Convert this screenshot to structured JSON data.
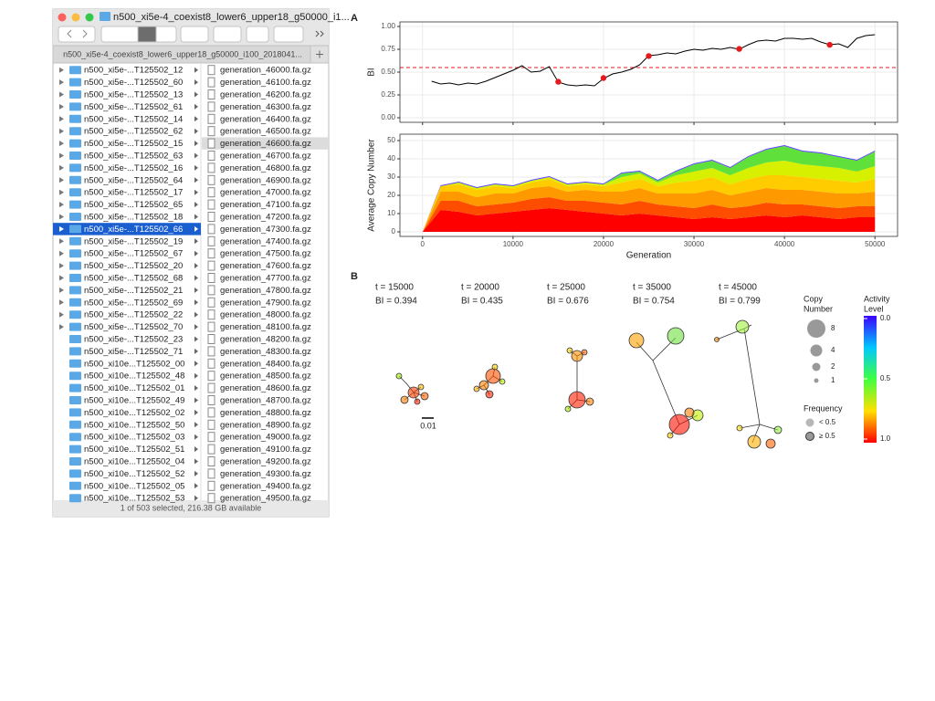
{
  "finder": {
    "title": "n500_xi5e-4_coexist8_lower6_upper18_g50000_i1...",
    "path": "n500_xi5e-4_coexist8_lower6_upper18_g50000_i100_2018041...",
    "status": "1 of 503 selected, 216.38 GB available",
    "selected_folder": 13,
    "selected_file": 6,
    "expandable_rows": 22,
    "folders": [
      "n500_xi5e-...T125502_12",
      "n500_xi5e-...T125502_60",
      "n500_xi5e-...T125502_13",
      "n500_xi5e-...T125502_61",
      "n500_xi5e-...T125502_14",
      "n500_xi5e-...T125502_62",
      "n500_xi5e-...T125502_15",
      "n500_xi5e-...T125502_63",
      "n500_xi5e-...T125502_16",
      "n500_xi5e-...T125502_64",
      "n500_xi5e-...T125502_17",
      "n500_xi5e-...T125502_65",
      "n500_xi5e-...T125502_18",
      "n500_xi5e-...T125502_66",
      "n500_xi5e-...T125502_19",
      "n500_xi5e-...T125502_67",
      "n500_xi5e-...T125502_20",
      "n500_xi5e-...T125502_68",
      "n500_xi5e-...T125502_21",
      "n500_xi5e-...T125502_69",
      "n500_xi5e-...T125502_22",
      "n500_xi5e-...T125502_70",
      "n500_xi5e-...T125502_23",
      "n500_xi5e-...T125502_71",
      "n500_xi10e...T125502_00",
      "n500_xi10e...T125502_48",
      "n500_xi10e...T125502_01",
      "n500_xi10e...T125502_49",
      "n500_xi10e...T125502_02",
      "n500_xi10e...T125502_50",
      "n500_xi10e...T125502_03",
      "n500_xi10e...T125502_51",
      "n500_xi10e...T125502_04",
      "n500_xi10e...T125502_52",
      "n500_xi10e...T125502_05",
      "n500_xi10e...T125502_53"
    ],
    "files": [
      "generation_46000.fa.gz",
      "generation_46100.fa.gz",
      "generation_46200.fa.gz",
      "generation_46300.fa.gz",
      "generation_46400.fa.gz",
      "generation_46500.fa.gz",
      "generation_46600.fa.gz",
      "generation_46700.fa.gz",
      "generation_46800.fa.gz",
      "generation_46900.fa.gz",
      "generation_47000.fa.gz",
      "generation_47100.fa.gz",
      "generation_47200.fa.gz",
      "generation_47300.fa.gz",
      "generation_47400.fa.gz",
      "generation_47500.fa.gz",
      "generation_47600.fa.gz",
      "generation_47700.fa.gz",
      "generation_47800.fa.gz",
      "generation_47900.fa.gz",
      "generation_48000.fa.gz",
      "generation_48100.fa.gz",
      "generation_48200.fa.gz",
      "generation_48300.fa.gz",
      "generation_48400.fa.gz",
      "generation_48500.fa.gz",
      "generation_48600.fa.gz",
      "generation_48700.fa.gz",
      "generation_48800.fa.gz",
      "generation_48900.fa.gz",
      "generation_49000.fa.gz",
      "generation_49100.fa.gz",
      "generation_49200.fa.gz",
      "generation_49300.fa.gz",
      "generation_49400.fa.gz",
      "generation_49500.fa.gz"
    ]
  },
  "chart_data": [
    {
      "type": "line",
      "ylabel": "BI",
      "x": [
        1000,
        2000,
        3000,
        4000,
        5000,
        6000,
        7000,
        8000,
        9000,
        10000,
        11000,
        12000,
        13000,
        14000,
        15000,
        16000,
        17000,
        18000,
        19000,
        20000,
        21000,
        22000,
        23000,
        24000,
        25000,
        26000,
        27000,
        28000,
        29000,
        30000,
        31000,
        32000,
        33000,
        34000,
        35000,
        36000,
        37000,
        38000,
        39000,
        40000,
        41000,
        42000,
        43000,
        44000,
        45000,
        46000,
        47000,
        48000,
        49000,
        50000
      ],
      "series": [
        {
          "color": "#000000",
          "values": [
            0.4,
            0.37,
            0.38,
            0.36,
            0.38,
            0.37,
            0.4,
            0.44,
            0.48,
            0.52,
            0.57,
            0.5,
            0.51,
            0.56,
            0.39,
            0.36,
            0.35,
            0.36,
            0.35,
            0.43,
            0.48,
            0.5,
            0.53,
            0.58,
            0.68,
            0.69,
            0.71,
            0.7,
            0.73,
            0.75,
            0.74,
            0.76,
            0.75,
            0.77,
            0.75,
            0.8,
            0.84,
            0.85,
            0.84,
            0.87,
            0.87,
            0.86,
            0.87,
            0.83,
            0.8,
            0.81,
            0.77,
            0.87,
            0.9,
            0.91
          ]
        }
      ],
      "markers": {
        "color": "#e41a1c",
        "x": [
          15000,
          20000,
          25000,
          35000,
          45000
        ],
        "values": [
          0.394,
          0.435,
          0.676,
          0.754,
          0.799
        ]
      },
      "hline": {
        "value": 0.55,
        "color": "#e41a1c",
        "dashed": true
      },
      "xlim": [
        -2500,
        52500
      ],
      "xticks": [
        0,
        10000,
        20000,
        30000,
        40000,
        50000
      ],
      "xtick_labels": false,
      "ylim": [
        -0.05,
        1.05
      ],
      "yticks": [
        {
          "value": 0,
          "label": "0.00"
        },
        {
          "value": 0.25,
          "label": "0.25"
        },
        {
          "value": 0.5,
          "label": "0.50"
        },
        {
          "value": 0.75,
          "label": "0.75"
        },
        {
          "value": 1,
          "label": "1.00"
        }
      ],
      "grid": true
    },
    {
      "type": "area",
      "stacked": true,
      "xlabel": "Generation",
      "ylabel": "Average Copy Number",
      "x": [
        0,
        2000,
        4000,
        6000,
        8000,
        10000,
        12000,
        14000,
        16000,
        18000,
        20000,
        22000,
        24000,
        26000,
        28000,
        30000,
        32000,
        34000,
        36000,
        38000,
        40000,
        42000,
        44000,
        46000,
        48000,
        50000
      ],
      "series": [
        {
          "color": "#ff0000",
          "values": [
            0,
            12,
            11,
            9,
            10,
            11,
            12,
            13,
            12,
            11,
            10,
            9,
            10,
            9,
            8,
            7,
            8,
            7,
            8,
            9,
            8,
            9,
            8,
            7,
            8,
            8
          ]
        },
        {
          "color": "#ff4d00",
          "values": [
            0,
            5,
            6,
            5,
            5,
            5,
            6,
            6,
            5,
            6,
            6,
            6,
            7,
            6,
            6,
            6,
            7,
            6,
            6,
            7,
            7,
            6,
            6,
            6,
            6,
            6
          ]
        },
        {
          "color": "#ff9900",
          "values": [
            0,
            5,
            5,
            5,
            6,
            5,
            6,
            6,
            5,
            6,
            6,
            7,
            7,
            6,
            7,
            8,
            8,
            7,
            8,
            8,
            8,
            8,
            8,
            8,
            7,
            8
          ]
        },
        {
          "color": "#ffcc00",
          "values": [
            0,
            3,
            4,
            4,
            4,
            3,
            3,
            4,
            3,
            3,
            3,
            5,
            5,
            4,
            6,
            7,
            7,
            6,
            7,
            7,
            8,
            7,
            7,
            7,
            6,
            7
          ]
        },
        {
          "color": "#d6f000",
          "values": [
            0,
            0,
            1,
            1,
            1,
            1,
            1,
            1,
            1,
            1,
            1,
            3,
            3,
            2,
            4,
            5,
            5,
            5,
            6,
            7,
            8,
            7,
            7,
            7,
            6,
            7
          ]
        },
        {
          "color": "#5fe03a",
          "values": [
            0,
            0,
            0,
            0,
            0,
            0,
            0,
            0,
            0,
            0,
            0,
            2,
            1,
            1,
            2,
            4,
            4,
            4,
            6,
            7,
            8,
            7,
            7,
            6,
            6,
            8
          ]
        },
        {
          "color": "#5a3cff",
          "values": [
            0,
            0.5,
            0.5,
            0.5,
            0.5,
            0.5,
            0.5,
            0.5,
            0.5,
            0.5,
            0.5,
            0.5,
            0.5,
            0.5,
            0.5,
            0.5,
            0.5,
            0.5,
            0.5,
            0.5,
            0.5,
            0.5,
            0.5,
            0.5,
            0.5,
            0.5
          ]
        }
      ],
      "xlim": [
        -2500,
        52500
      ],
      "xticks": [
        0,
        10000,
        20000,
        30000,
        40000,
        50000
      ],
      "ylim": [
        -2.5,
        53.5
      ],
      "yticks": [
        0,
        10,
        20,
        30,
        40,
        50
      ],
      "grid": true
    }
  ],
  "figure": {
    "panel_a": "A",
    "panel_b": "B",
    "snapshots": [
      {
        "t": "t = 15000",
        "bi": "BI = 0.394"
      },
      {
        "t": "t = 20000",
        "bi": "BI = 0.435"
      },
      {
        "t": "t = 25000",
        "bi": "BI = 0.676"
      },
      {
        "t": "t = 35000",
        "bi": "BI = 0.754"
      },
      {
        "t": "t = 45000",
        "bi": "BI = 0.799"
      }
    ],
    "scale_bar": "0.01",
    "copy_number_title": [
      "Copy",
      "Number"
    ],
    "copy_number_keys": [
      "8",
      "4",
      "2",
      "1"
    ],
    "frequency_title": "Frequency",
    "frequency_keys": [
      "< 0.5",
      "≥ 0.5"
    ],
    "activity_title": [
      "Activity",
      "Level"
    ],
    "activity_ticks": [
      {
        "value": 0,
        "label": "0.0"
      },
      {
        "value": 0.5,
        "label": "0.5"
      },
      {
        "value": 1,
        "label": "1.0"
      }
    ]
  }
}
